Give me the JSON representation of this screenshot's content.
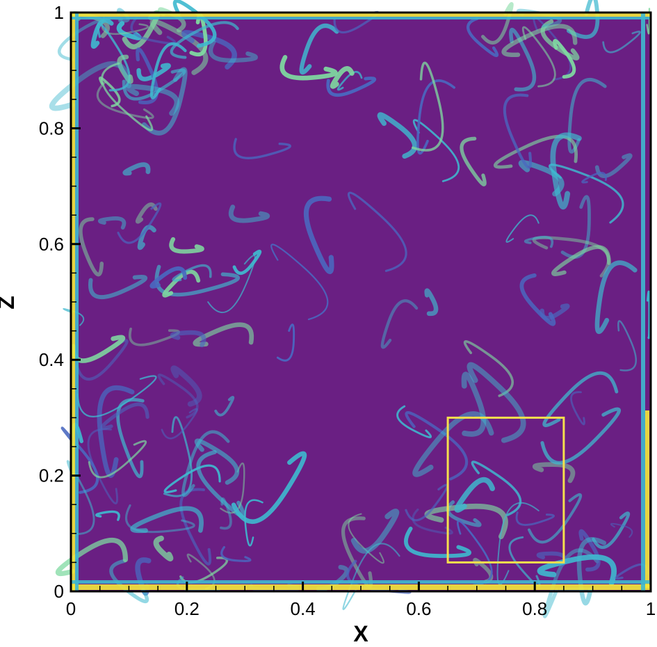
{
  "chart_data": {
    "type": "heatmap",
    "xlabel": "X",
    "ylabel": "Z",
    "xlim": [
      0,
      1
    ],
    "ylim": [
      0,
      1
    ],
    "xticks": [
      0,
      0.2,
      0.4,
      0.6,
      0.8,
      1
    ],
    "yticks": [
      0,
      0.2,
      0.4,
      0.6,
      0.8,
      1
    ],
    "xtick_labels": [
      "0",
      "0.2",
      "0.4",
      "0.6",
      "0.8",
      "1"
    ],
    "ytick_labels": [
      "0",
      "0.2",
      "0.4",
      "0.6",
      "0.8",
      "1"
    ],
    "minor_tick_step": 0.05,
    "grid": false,
    "colormap": [
      "#6a1f83",
      "#4a68c0",
      "#3fb9cf",
      "#7fd9a0",
      "#f5e83a"
    ],
    "background_color": "#6a1f83",
    "annotation_box": {
      "x": [
        0.65,
        0.85
      ],
      "z": [
        0.05,
        0.3
      ],
      "color": "#f5df4d"
    }
  }
}
